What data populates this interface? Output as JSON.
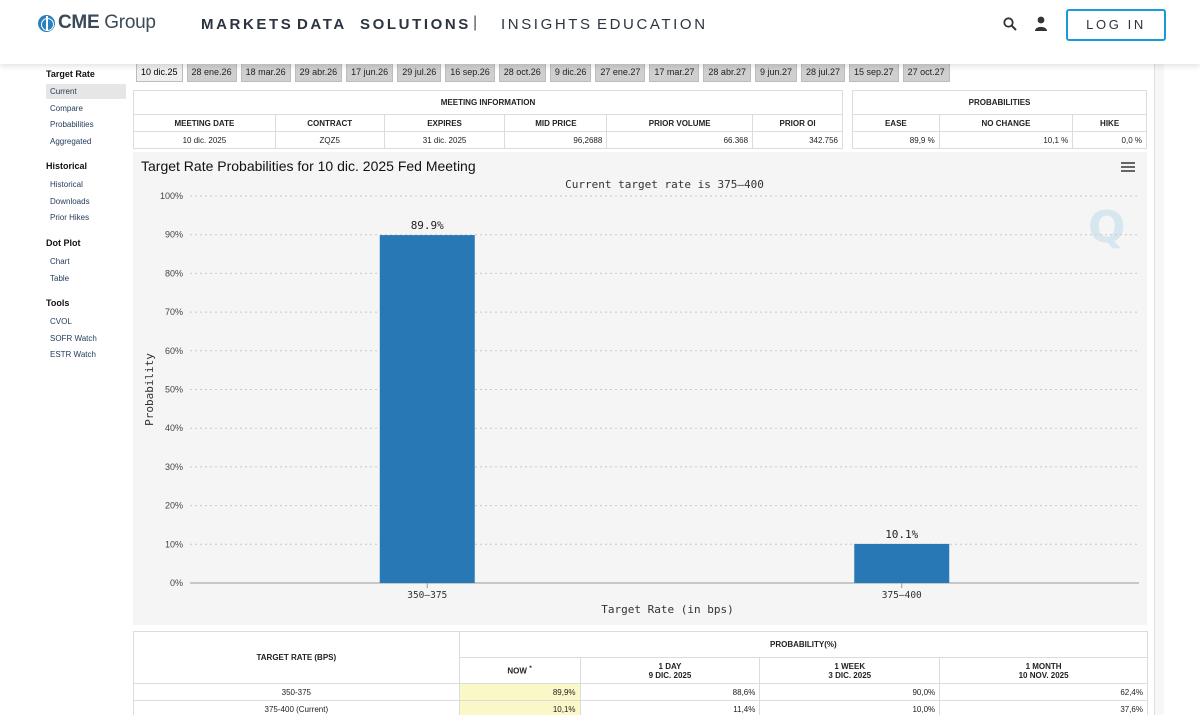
{
  "nav": {
    "logo_bold": "CME",
    "logo_rest": " Group",
    "links": [
      "MARKETS",
      "DATA",
      "SOLUTIONS",
      "INSIGHTS",
      "EDUCATION"
    ],
    "separator": "|",
    "login": "LOG IN"
  },
  "date_tabs": [
    "10 dic.25",
    "28 ene.26",
    "18 mar.26",
    "29 abr.26",
    "17 jun.26",
    "29 jul.26",
    "16 sep.26",
    "28 oct.26",
    "9 dic.26",
    "27 ene.27",
    "17 mar.27",
    "28 abr.27",
    "9 jun.27",
    "28 jul.27",
    "15 sep.27",
    "27 oct.27"
  ],
  "sidebar": {
    "sections": [
      {
        "title": "Target Rate",
        "items": [
          "Current",
          "Compare",
          "Probabilities",
          "Aggregated"
        ]
      },
      {
        "title": "Historical",
        "items": [
          "Historical",
          "Downloads",
          "Prior Hikes"
        ]
      },
      {
        "title": "Dot Plot",
        "items": [
          "Chart",
          "Table"
        ]
      },
      {
        "title": "Tools",
        "items": [
          "CVOL",
          "SOFR Watch",
          "ESTR Watch"
        ]
      }
    ]
  },
  "meeting_info": {
    "header": "MEETING INFORMATION",
    "columns": [
      "MEETING DATE",
      "CONTRACT",
      "EXPIRES",
      "MID PRICE",
      "PRIOR VOLUME",
      "PRIOR OI"
    ],
    "row": [
      "10 dic. 2025",
      "ZQZ5",
      "31 dic. 2025",
      "96,2688",
      "66.368",
      "342.756"
    ]
  },
  "probabilities": {
    "header": "PROBABILITIES",
    "columns": [
      "EASE",
      "NO CHANGE",
      "HIKE"
    ],
    "row": [
      "89,9 %",
      "10,1 %",
      "0,0 %"
    ]
  },
  "chart": {
    "title": "Target Rate Probabilities for 10 dic. 2025 Fed Meeting",
    "watermark": "Q"
  },
  "chart_data": {
    "type": "bar",
    "title": "Target Rate Probabilities for 10 dic. 2025 Fed Meeting",
    "subtitle": "Current target rate is 375–400",
    "categories": [
      "350–375",
      "375–400"
    ],
    "values": [
      89.9,
      10.1
    ],
    "data_labels": [
      "89.9%",
      "10.1%"
    ],
    "xlabel": "Target Rate (in bps)",
    "ylabel": "Probability",
    "ylim": [
      0,
      100
    ],
    "yticks": [
      "0%",
      "10%",
      "20%",
      "30%",
      "40%",
      "50%",
      "60%",
      "70%",
      "80%",
      "90%",
      "100%"
    ],
    "grid": true,
    "bar_color": "#2878b5"
  },
  "prob_table": {
    "rate_header": "TARGET RATE (BPS)",
    "prob_header": "PROBABILITY(%)",
    "now_label": "NOW",
    "now_marker": "*",
    "period_cols": [
      {
        "line1": "1 DAY",
        "line2": "9 DIC. 2025"
      },
      {
        "line1": "1 WEEK",
        "line2": "3 DIC. 2025"
      },
      {
        "line1": "1 MONTH",
        "line2": "10 NOV. 2025"
      }
    ],
    "rows": [
      {
        "rate": "350-375",
        "now": "89,9%",
        "day": "88,6%",
        "week": "90,0%",
        "month": "62,4%"
      },
      {
        "rate": "375-400 (Current)",
        "now": "10,1%",
        "day": "11,4%",
        "week": "10,0%",
        "month": "37,6%"
      }
    ]
  }
}
